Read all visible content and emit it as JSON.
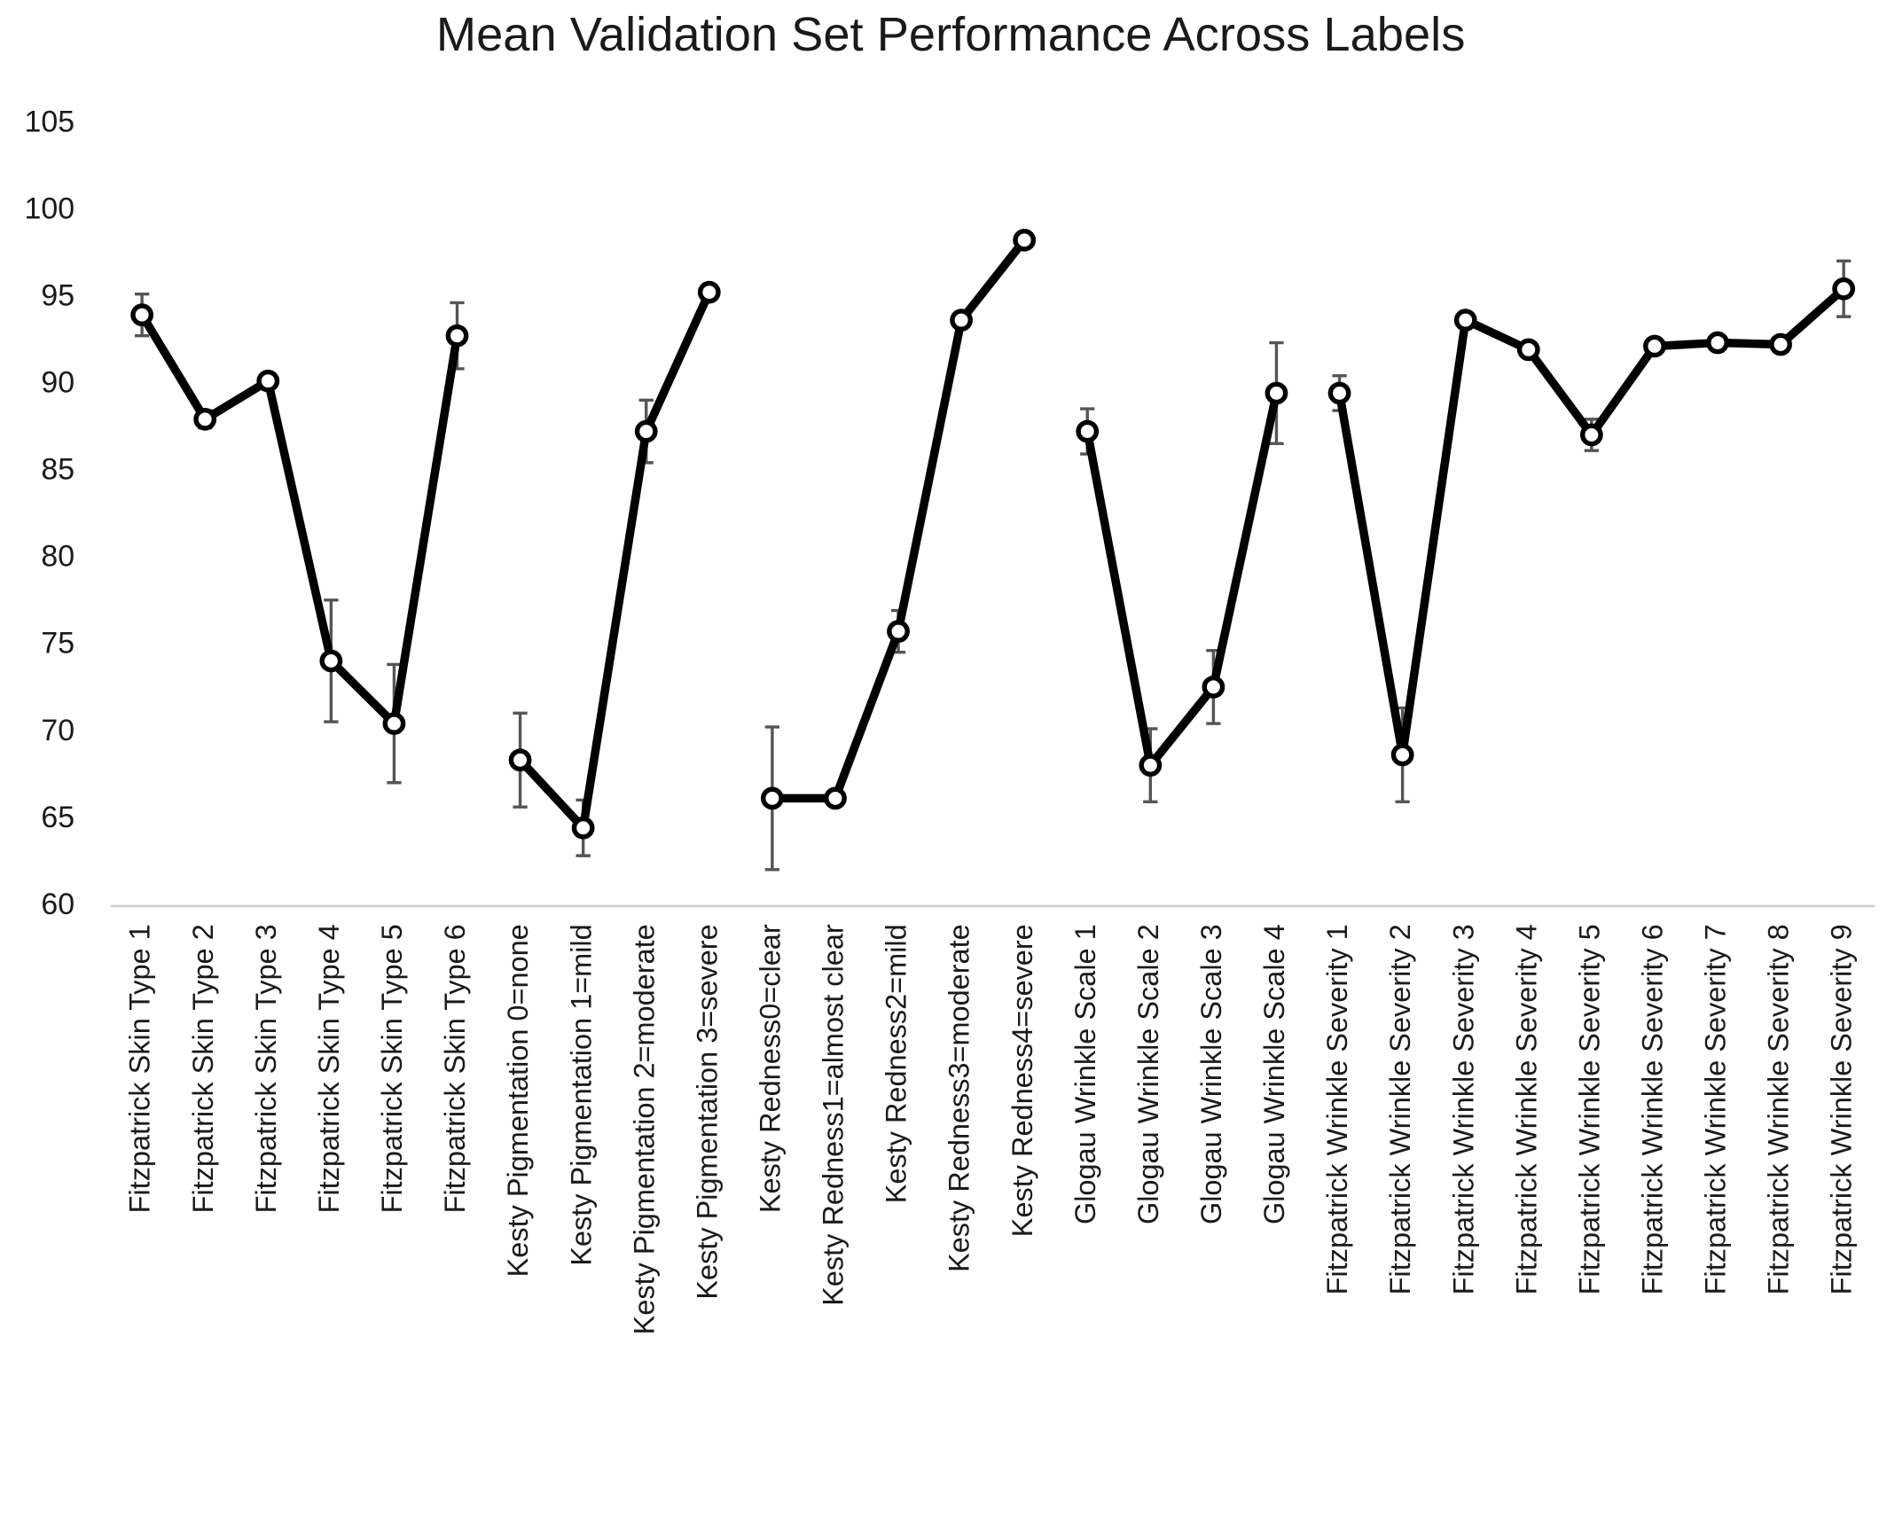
{
  "chart_data": {
    "type": "line",
    "title": "Mean Validation Set Performance Across Labels",
    "categories": [
      "Fitzpatrick Skin Type 1",
      "Fitzpatrick Skin Type 2",
      "Fitzpatrick Skin Type 3",
      "Fitzpatrick Skin Type 4",
      "Fitzpatrick Skin Type 5",
      "Fitzpatrick Skin Type 6",
      "Kesty Pigmentation 0=none",
      "Kesty Pigmentation 1=mild",
      "Kesty Pigmentation 2=moderate",
      "Kesty Pigmentation 3=severe",
      "Kesty Redness0=clear",
      "Kesty Redness1=almost clear",
      "Kesty Redness2=mild",
      "Kesty Redness3=moderate",
      "Kesty Redness4=severe",
      "Glogau Wrinkle Scale 1",
      "Glogau Wrinkle Scale 2",
      "Glogau Wrinkle Scale 3",
      "Glogau Wrinkle Scale 4",
      "Fitzpatrick Wrinkle Severity 1",
      "Fitzpatrick Wrinkle Severity 2",
      "Fitzpatrick Wrinkle Severity 3",
      "Fitzpatrick Wrinkle Severity 4",
      "Fitzpatrick Wrinkle Severity 5",
      "Fitzpatrick Wrinkle Severity 6",
      "Fitzpatrick Wrinkle Severity 7",
      "Fitzpatrick Wrinkle Severity 8",
      "Fitzpatrick Wrinkle Severity 9"
    ],
    "series": [
      {
        "color": "#000000",
        "error_color": "#555555",
        "values": [
          94,
          88,
          90.2,
          74.1,
          70.5,
          92.8,
          null,
          null,
          null,
          null,
          null,
          null,
          null,
          null,
          null,
          null,
          null,
          null,
          null,
          null,
          null,
          null,
          null,
          null,
          null,
          null,
          null,
          null
        ],
        "errors": [
          1.2,
          0.5,
          0.3,
          3.5,
          3.4,
          1.9,
          null,
          null,
          null,
          null,
          null,
          null,
          null,
          null,
          null,
          null,
          null,
          null,
          null,
          null,
          null,
          null,
          null,
          null,
          null,
          null,
          null,
          null
        ]
      },
      {
        "color": "#000000",
        "error_color": "#555555",
        "values": [
          null,
          null,
          null,
          null,
          null,
          null,
          68.4,
          64.5,
          87.3,
          95.3,
          null,
          null,
          null,
          null,
          null,
          null,
          null,
          null,
          null,
          null,
          null,
          null,
          null,
          null,
          null,
          null,
          null,
          null
        ],
        "errors": [
          null,
          null,
          null,
          null,
          null,
          null,
          2.7,
          1.6,
          1.8,
          0.3,
          null,
          null,
          null,
          null,
          null,
          null,
          null,
          null,
          null,
          null,
          null,
          null,
          null,
          null,
          null,
          null,
          null,
          null
        ]
      },
      {
        "color": "#000000",
        "error_color": "#555555",
        "values": [
          null,
          null,
          null,
          null,
          null,
          null,
          null,
          null,
          null,
          null,
          66.2,
          66.2,
          75.8,
          93.7,
          98.3,
          null,
          null,
          null,
          null,
          null,
          null,
          null,
          null,
          null,
          null,
          null,
          null,
          null
        ],
        "errors": [
          null,
          null,
          null,
          null,
          null,
          null,
          null,
          null,
          null,
          null,
          4.1,
          0,
          1.2,
          0.3,
          0.3,
          null,
          null,
          null,
          null,
          null,
          null,
          null,
          null,
          null,
          null,
          null,
          null,
          null
        ]
      },
      {
        "color": "#000000",
        "error_color": "#555555",
        "values": [
          null,
          null,
          null,
          null,
          null,
          null,
          null,
          null,
          null,
          null,
          null,
          null,
          null,
          null,
          null,
          87.3,
          68.1,
          72.6,
          89.5,
          null,
          null,
          null,
          null,
          null,
          null,
          null,
          null,
          null
        ],
        "errors": [
          null,
          null,
          null,
          null,
          null,
          null,
          null,
          null,
          null,
          null,
          null,
          null,
          null,
          null,
          null,
          1.3,
          2.1,
          2.1,
          2.9,
          null,
          null,
          null,
          null,
          null,
          null,
          null,
          null,
          null
        ]
      },
      {
        "color": "#000000",
        "error_color": "#555555",
        "values": [
          null,
          null,
          null,
          null,
          null,
          null,
          null,
          null,
          null,
          null,
          null,
          null,
          null,
          null,
          null,
          null,
          null,
          null,
          null,
          89.5,
          68.7,
          93.7,
          92,
          87.1,
          92.2,
          92.4,
          92.3,
          95.5
        ],
        "errors": [
          null,
          null,
          null,
          null,
          null,
          null,
          null,
          null,
          null,
          null,
          null,
          null,
          null,
          null,
          null,
          null,
          null,
          null,
          null,
          1,
          2.7,
          0.3,
          0.3,
          0.9,
          0.3,
          0.3,
          0.3,
          1.6
        ]
      }
    ],
    "ylim": [
      60,
      105
    ],
    "yticks": [
      60,
      65,
      70,
      75,
      80,
      85,
      90,
      95,
      100,
      105
    ],
    "grid": false
  }
}
